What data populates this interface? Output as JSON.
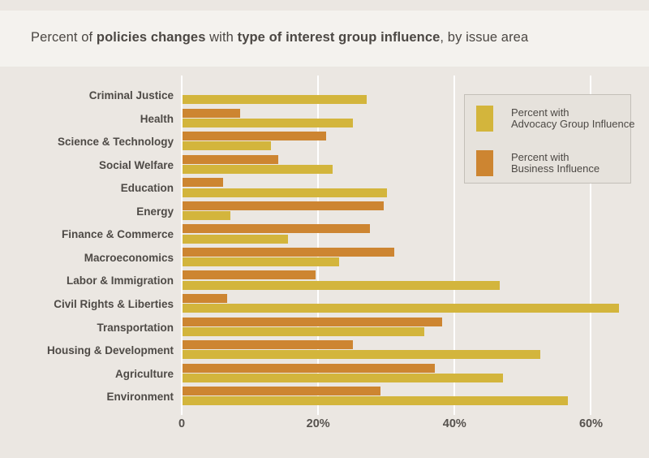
{
  "title": {
    "parts": [
      {
        "text": "Percent of ",
        "bold": false
      },
      {
        "text": "policies changes",
        "bold": true
      },
      {
        "text": " with ",
        "bold": false
      },
      {
        "text": "type of interest group influence",
        "bold": true
      },
      {
        "text": ", by issue area",
        "bold": false
      }
    ]
  },
  "legend": {
    "items": [
      {
        "color": "#d3b53c",
        "line1": "Percent with",
        "line2": "Advocacy Group Influence"
      },
      {
        "color": "#cd8531",
        "line1": "Percent with",
        "line2": "Business Influence"
      }
    ]
  },
  "chart_data": {
    "type": "bar",
    "orientation": "horizontal",
    "title": "Percent of policies changes with type of interest group influence, by issue area",
    "categories": [
      "Criminal Justice",
      "Health",
      "Science & Technology",
      "Social Welfare",
      "Education",
      "Energy",
      "Finance & Commerce",
      "Macroeconomics",
      "Labor & Immigration",
      "Civil Rights & Liberties",
      "Transportation",
      "Housing & Development",
      "Agriculture",
      "Environment"
    ],
    "series": [
      {
        "name": "Percent with Business Influence",
        "color": "#cd8531",
        "row_position": "top",
        "values": [
          0,
          8.5,
          21,
          14,
          6,
          29.5,
          27.5,
          31,
          19.5,
          6.5,
          38,
          25,
          37,
          29
        ]
      },
      {
        "name": "Percent with Advocacy Group Influence",
        "color": "#d3b53c",
        "row_position": "bottom",
        "values": [
          27,
          25,
          13,
          22,
          30,
          7,
          15.5,
          23,
          46.5,
          64,
          35.5,
          52.5,
          47,
          56.5
        ]
      }
    ],
    "x_ticks": [
      "0",
      "20%",
      "40%",
      "60%"
    ],
    "x_tick_values": [
      0,
      20,
      40,
      60
    ],
    "xlim": [
      0,
      68.5
    ],
    "xlabel": "",
    "ylabel": "",
    "grid": true,
    "legend_position": "top-right",
    "notes": "Business (orange) bar drawn above Advocacy (yellow) bar for each category; Criminal Justice shows no business bar (value 0)."
  }
}
